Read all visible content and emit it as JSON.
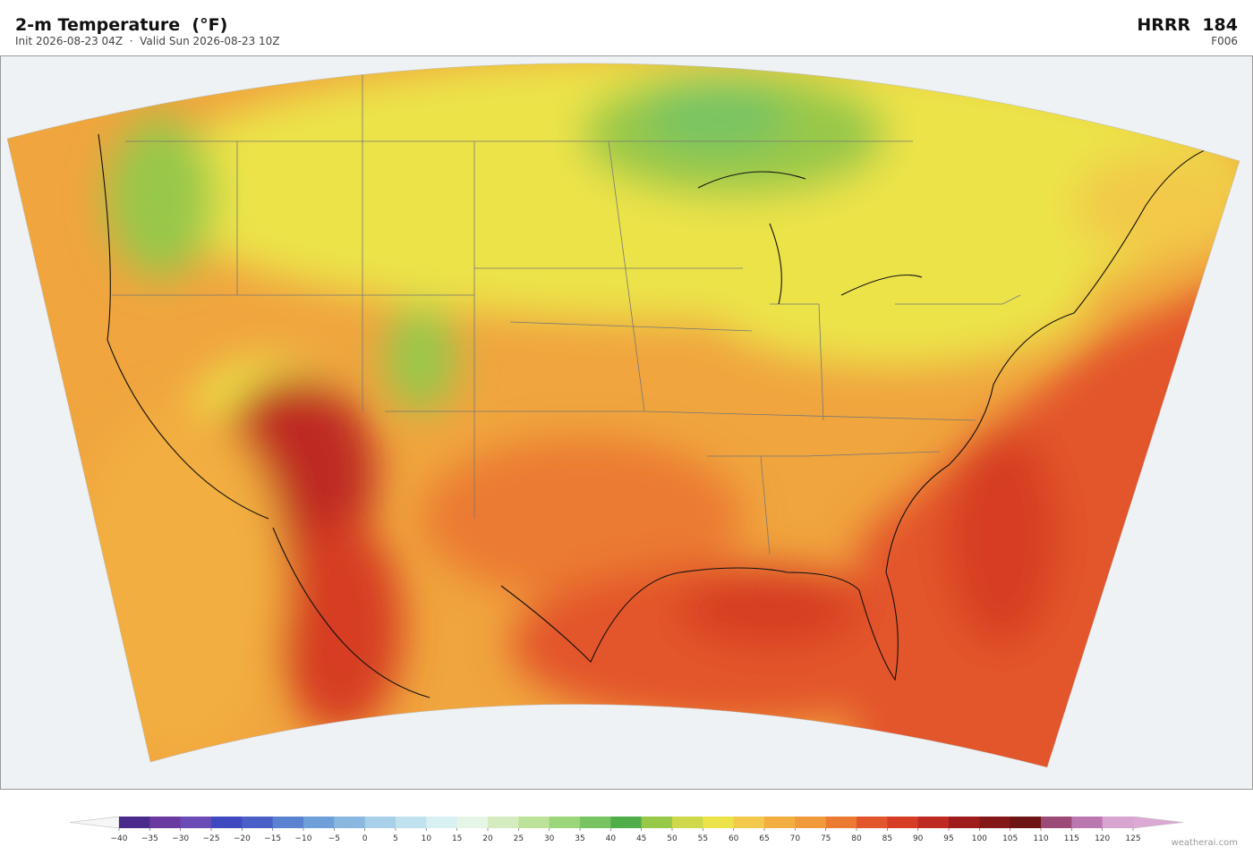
{
  "header": {
    "title": "2-m Temperature  (°F)",
    "subtitle": "Init 2026-08-23 04Z  ·  Valid Sun 2026-08-23 10Z",
    "model": "HRRR  184",
    "forecast_hour": "F006"
  },
  "colorbar": {
    "ticks": [
      {
        "value": -40,
        "label": "−40"
      },
      {
        "value": -35,
        "label": "−35"
      },
      {
        "value": -30,
        "label": "−30"
      },
      {
        "value": -25,
        "label": "−25"
      },
      {
        "value": -20,
        "label": "−20"
      },
      {
        "value": -15,
        "label": "−15"
      },
      {
        "value": -10,
        "label": "−10"
      },
      {
        "value": -5,
        "label": "−5"
      },
      0,
      5,
      10,
      15,
      20,
      25,
      30,
      35,
      40,
      45,
      50,
      55,
      60,
      65,
      70,
      75,
      80,
      85,
      90,
      95,
      100,
      105,
      110,
      115,
      120,
      125
    ],
    "colors": [
      "#4a2a8c",
      "#6a3aa0",
      "#6b4bb5",
      "#3f4ac0",
      "#4a60c8",
      "#5a82d0",
      "#6e9fd8",
      "#8ab8e0",
      "#a8d0e8",
      "#c0e2ef",
      "#d8f0f2",
      "#e6f6e6",
      "#d4ecc0",
      "#bde29a",
      "#9cd67a",
      "#78c462",
      "#4fae4a",
      "#98c848",
      "#cfd84a",
      "#ece34a",
      "#f2c94a",
      "#f2ae40",
      "#f09a3c",
      "#eb7a33",
      "#e3552b",
      "#d63d24",
      "#be2a22",
      "#9e1c1c",
      "#841818",
      "#6e1414",
      "#9c4a78",
      "#bb78b0",
      "#d8a4d0"
    ],
    "under_color": "#f6f6f6",
    "over_color": "#dca8d4"
  },
  "footer": "weatherai.com"
}
